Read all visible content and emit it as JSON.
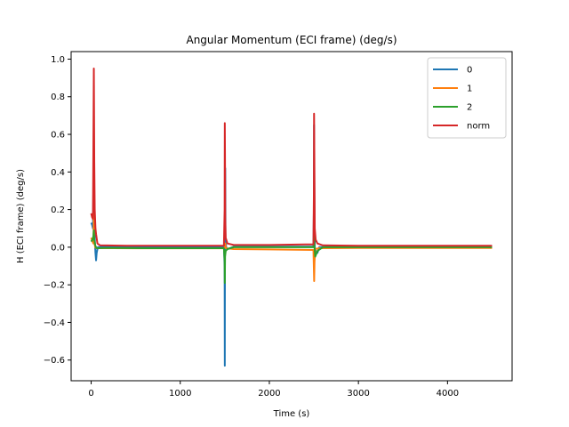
{
  "chart_data": {
    "type": "line",
    "title": "Angular Momentum (ECI frame) (deg/s)",
    "xlabel": "Time (s)",
    "ylabel": "H (ECI frame) (deg/s)",
    "xlim": [
      -225,
      4725
    ],
    "ylim": [
      -0.71,
      1.04
    ],
    "xticks": [
      0,
      1000,
      2000,
      3000,
      4000
    ],
    "xtick_labels": [
      "0",
      "1000",
      "2000",
      "3000",
      "4000"
    ],
    "yticks": [
      -0.6,
      -0.4,
      -0.2,
      0.0,
      0.2,
      0.4,
      0.6,
      0.8,
      1.0
    ],
    "ytick_labels": [
      "−0.6",
      "−0.4",
      "−0.2",
      "0.0",
      "0.2",
      "0.4",
      "0.6",
      "0.8",
      "1.0"
    ],
    "grid": false,
    "legend_position": "top-right",
    "series": [
      {
        "name": "0",
        "color": "#1f77b4",
        "points": [
          [
            0,
            0.13
          ],
          [
            10,
            0.12
          ],
          [
            20,
            0.1
          ],
          [
            25,
            0.3
          ],
          [
            30,
            0.5
          ],
          [
            35,
            0.2
          ],
          [
            40,
            0.05
          ],
          [
            48,
            -0.03
          ],
          [
            55,
            -0.07
          ],
          [
            62,
            -0.03
          ],
          [
            75,
            0.0
          ],
          [
            150,
            0.003
          ],
          [
            400,
            0.004
          ],
          [
            800,
            0.004
          ],
          [
            1200,
            0.004
          ],
          [
            1490,
            0.004
          ],
          [
            1498,
            -0.1
          ],
          [
            1500,
            -0.63
          ],
          [
            1502,
            0.1
          ],
          [
            1505,
            0.42
          ],
          [
            1508,
            0.05
          ],
          [
            1515,
            0.0
          ],
          [
            1530,
            -0.01
          ],
          [
            1600,
            0.003
          ],
          [
            2000,
            0.003
          ],
          [
            2400,
            0.003
          ],
          [
            2495,
            0.003
          ],
          [
            2500,
            0.2
          ],
          [
            2502,
            0.65
          ],
          [
            2505,
            0.35
          ],
          [
            2510,
            0.0
          ],
          [
            2520,
            -0.02
          ],
          [
            2540,
            -0.03
          ],
          [
            2560,
            0.0
          ],
          [
            2700,
            0.003
          ],
          [
            3500,
            0.003
          ],
          [
            4500,
            0.003
          ]
        ]
      },
      {
        "name": "1",
        "color": "#ff7f0e",
        "points": [
          [
            0,
            0.05
          ],
          [
            15,
            0.03
          ],
          [
            25,
            0.02
          ],
          [
            30,
            0.18
          ],
          [
            35,
            0.03
          ],
          [
            45,
            0.0
          ],
          [
            60,
            -0.005
          ],
          [
            100,
            -0.005
          ],
          [
            500,
            -0.006
          ],
          [
            1000,
            -0.006
          ],
          [
            1490,
            -0.006
          ],
          [
            1500,
            0.0
          ],
          [
            1505,
            0.02
          ],
          [
            1510,
            -0.005
          ],
          [
            1600,
            -0.01
          ],
          [
            2000,
            -0.012
          ],
          [
            2495,
            -0.015
          ],
          [
            2500,
            -0.12
          ],
          [
            2503,
            -0.18
          ],
          [
            2507,
            -0.08
          ],
          [
            2515,
            -0.01
          ],
          [
            2560,
            -0.005
          ],
          [
            3000,
            -0.004
          ],
          [
            4500,
            -0.004
          ]
        ]
      },
      {
        "name": "2",
        "color": "#2ca02c",
        "points": [
          [
            0,
            0.03
          ],
          [
            15,
            0.04
          ],
          [
            25,
            0.06
          ],
          [
            30,
            0.09
          ],
          [
            35,
            0.04
          ],
          [
            45,
            0.01
          ],
          [
            60,
            -0.005
          ],
          [
            150,
            -0.004
          ],
          [
            600,
            -0.005
          ],
          [
            1200,
            -0.005
          ],
          [
            1490,
            -0.005
          ],
          [
            1498,
            -0.07
          ],
          [
            1500,
            -0.19
          ],
          [
            1503,
            -0.05
          ],
          [
            1510,
            -0.02
          ],
          [
            1530,
            -0.01
          ],
          [
            1600,
            0.0
          ],
          [
            2000,
            0.0
          ],
          [
            2495,
            0.0
          ],
          [
            2500,
            0.05
          ],
          [
            2503,
            0.07
          ],
          [
            2507,
            0.0
          ],
          [
            2515,
            -0.05
          ],
          [
            2540,
            -0.02
          ],
          [
            2600,
            0.0
          ],
          [
            3500,
            0.0
          ],
          [
            4500,
            0.0
          ]
        ]
      },
      {
        "name": "norm",
        "color": "#d62728",
        "points": [
          [
            0,
            0.18
          ],
          [
            10,
            0.16
          ],
          [
            20,
            0.15
          ],
          [
            25,
            0.55
          ],
          [
            30,
            0.95
          ],
          [
            35,
            0.45
          ],
          [
            40,
            0.2
          ],
          [
            48,
            0.1
          ],
          [
            55,
            0.07
          ],
          [
            70,
            0.02
          ],
          [
            100,
            0.01
          ],
          [
            400,
            0.008
          ],
          [
            800,
            0.008
          ],
          [
            1200,
            0.008
          ],
          [
            1490,
            0.008
          ],
          [
            1498,
            0.2
          ],
          [
            1500,
            0.66
          ],
          [
            1502,
            0.5
          ],
          [
            1505,
            0.15
          ],
          [
            1510,
            0.05
          ],
          [
            1530,
            0.02
          ],
          [
            1600,
            0.012
          ],
          [
            2000,
            0.012
          ],
          [
            2400,
            0.015
          ],
          [
            2495,
            0.015
          ],
          [
            2500,
            0.3
          ],
          [
            2502,
            0.71
          ],
          [
            2505,
            0.5
          ],
          [
            2510,
            0.1
          ],
          [
            2520,
            0.04
          ],
          [
            2540,
            0.02
          ],
          [
            2600,
            0.01
          ],
          [
            3000,
            0.008
          ],
          [
            4500,
            0.008
          ]
        ]
      }
    ]
  }
}
